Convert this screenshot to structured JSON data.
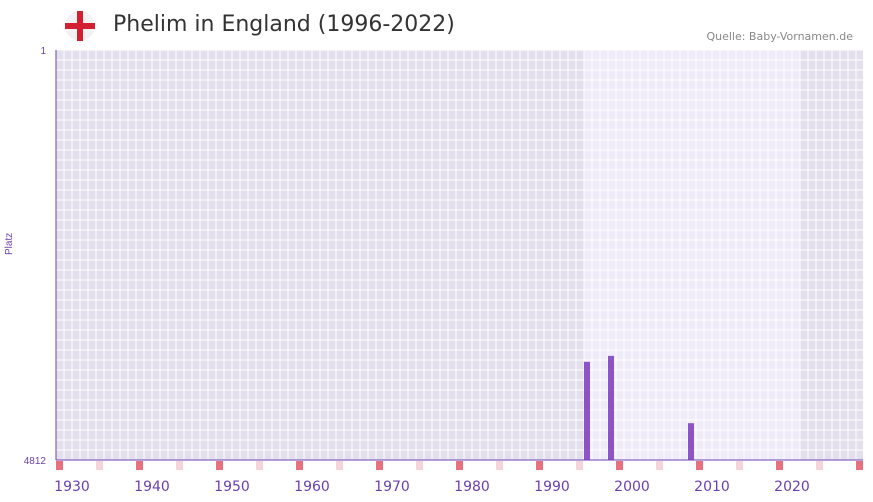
{
  "title": "Phelim in England (1996-2022)",
  "source": "Quelle: Baby-Vornamen.de",
  "flag_icon": "england-flag-icon",
  "colors": {
    "bar": "#8b55c8",
    "axis": "#6a3fb0",
    "marker": "#e8707e",
    "marker_light": "#f5d5dc",
    "bg": "#e3dfec",
    "highlight": "#efebf8"
  },
  "chart_data": {
    "type": "bar",
    "title": "Phelim in England (1996-2022)",
    "ylabel": "Platz",
    "xlabel": "",
    "xlim": [
      1928,
      2029
    ],
    "ylim": [
      4812,
      1
    ],
    "y_ticks": [
      "1",
      "4812"
    ],
    "x_ticks": [
      1930,
      1940,
      1950,
      1960,
      1970,
      1980,
      1990,
      2000,
      2010,
      2020
    ],
    "highlight_range": [
      1994,
      2020
    ],
    "bars": [
      {
        "year": 1994,
        "rank": 3660
      },
      {
        "year": 1997,
        "rank": 3590
      },
      {
        "year": 2007,
        "rank": 4380
      }
    ],
    "grid": true
  }
}
